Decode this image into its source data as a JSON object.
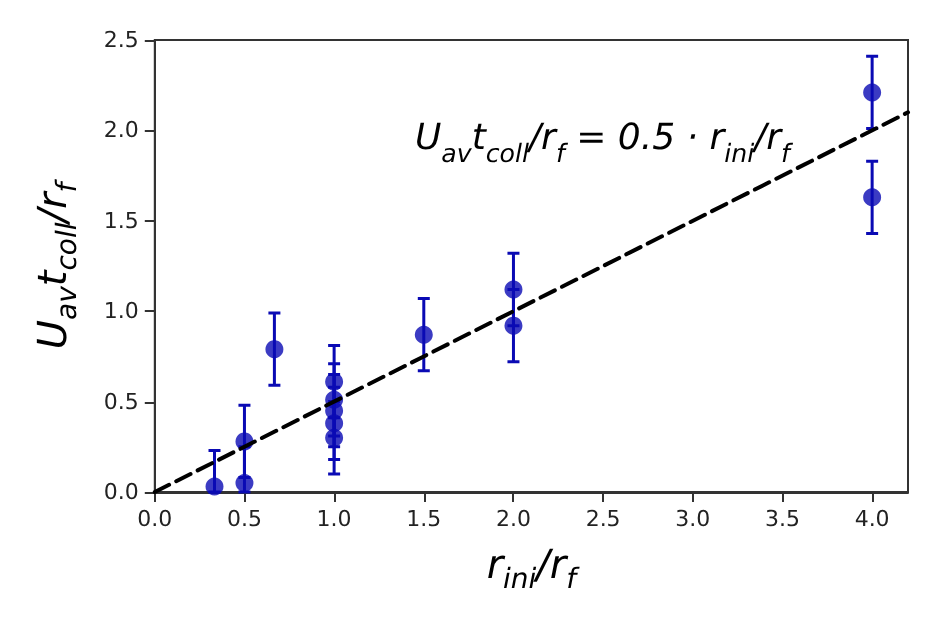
{
  "chart_data": {
    "type": "scatter",
    "xlabel": "r$_{ini}$/r$_{f}$",
    "ylabel": "U$_{av}$t$_{coll}$/r$_{f}$",
    "annotations": [
      "U$_{av}$t$_{coll}$/r$_{f}$ = 0.5 · r$_{ini}$/r$_{f}$"
    ],
    "xlim": [
      0,
      4.2
    ],
    "ylim": [
      0,
      2.5
    ],
    "xticks": [
      {
        "value": 0,
        "label": "0.0"
      },
      {
        "value": 0.5,
        "label": "0.5"
      },
      {
        "value": 1,
        "label": "1.0"
      },
      {
        "value": 1.5,
        "label": "1.5"
      },
      {
        "value": 2,
        "label": "2.0"
      },
      {
        "value": 2.5,
        "label": "2.5"
      },
      {
        "value": 3,
        "label": "3.0"
      },
      {
        "value": 3.5,
        "label": "3.5"
      },
      {
        "value": 4,
        "label": "4.0"
      }
    ],
    "yticks": [
      {
        "value": 0,
        "label": "0.0"
      },
      {
        "value": 0.5,
        "label": "0.5"
      },
      {
        "value": 1,
        "label": "1.0"
      },
      {
        "value": 1.5,
        "label": "1.5"
      },
      {
        "value": 2,
        "label": "2.0"
      },
      {
        "value": 2.5,
        "label": "2.5"
      }
    ],
    "grid": false,
    "series": [
      {
        "color": "#0a0ab4",
        "marker": "circle",
        "x": [
          0.333,
          0.5,
          0.5,
          0.667,
          1,
          1,
          1,
          1,
          1,
          1.5,
          2,
          2,
          4,
          4
        ],
        "values": [
          0.03,
          0.28,
          0.05,
          0.79,
          0.61,
          0.51,
          0.45,
          0.38,
          0.3,
          0.87,
          1.12,
          0.92,
          2.21,
          1.63
        ],
        "errors": [
          [
            0,
            0.23
          ],
          0.2,
          [
            0,
            0.25
          ],
          0.2,
          0.2,
          0.2,
          0.2,
          0.2,
          0.2,
          0.2,
          0.2,
          0.2,
          0.2,
          0.2
        ]
      },
      {
        "type": "line",
        "color": "#000000",
        "line_style": "dashed",
        "marker": "none",
        "x": [
          0,
          4.2
        ],
        "values": [
          0,
          2.1
        ]
      }
    ]
  }
}
